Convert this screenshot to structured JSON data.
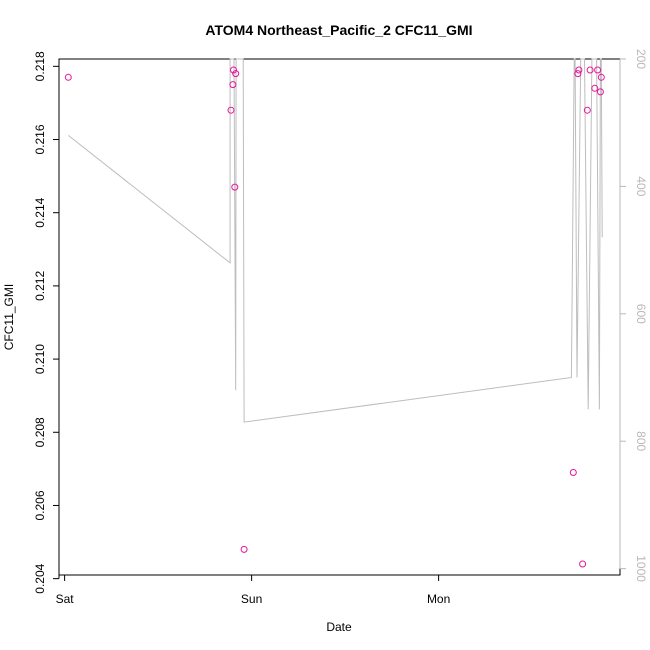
{
  "chart_data": {
    "type": "scatter",
    "title": "ATOM4 Northeast_Pacific_2 CFC11_GMI",
    "xlabel": "Date",
    "ylabel": "CFC11_GMI",
    "x_ticks": [
      "Sat",
      "Sun",
      "Mon"
    ],
    "ylim": [
      0.2041,
      0.2182
    ],
    "y_ticks": [
      "0.204",
      "0.206",
      "0.208",
      "0.210",
      "0.212",
      "0.214",
      "0.216",
      "0.218"
    ],
    "y2lim": [
      200,
      1010
    ],
    "y2_ticks": [
      "200",
      "400",
      "600",
      "800",
      "1000"
    ],
    "point_color": "#e8159a",
    "line_color": "#bdbdbd",
    "series": [
      {
        "type": "scatter",
        "axis": "left",
        "x": [
          0.02,
          0.89,
          0.9,
          0.903,
          0.91,
          0.915,
          0.96,
          2.72,
          2.745,
          2.75,
          2.77,
          2.795,
          2.81,
          2.835,
          2.85,
          2.865,
          2.87
        ],
        "y": [
          0.2177,
          0.2168,
          0.2175,
          0.2179,
          0.2147,
          0.2178,
          0.2048,
          0.2069,
          0.2178,
          0.2179,
          0.2044,
          0.2168,
          0.2179,
          0.2174,
          0.2179,
          0.2173,
          0.2177
        ]
      },
      {
        "type": "line",
        "axis": "right",
        "x": [
          0.02,
          0.885,
          0.885,
          0.887,
          0.888,
          0.905,
          0.906,
          0.915,
          0.917,
          0.92,
          0.94,
          0.955,
          0.96,
          2.71,
          2.725,
          2.73,
          2.74,
          2.76,
          2.765,
          2.78,
          2.8,
          2.82,
          2.825,
          2.83,
          2.845,
          2.86,
          2.865,
          2.87,
          2.875
        ],
        "y": [
          320,
          520,
          200,
          200,
          200,
          200,
          200,
          720,
          200,
          200,
          200,
          200,
          770,
          700,
          200,
          200,
          700,
          200,
          200,
          200,
          750,
          200,
          200,
          200,
          200,
          750,
          200,
          200,
          480
        ]
      }
    ]
  }
}
